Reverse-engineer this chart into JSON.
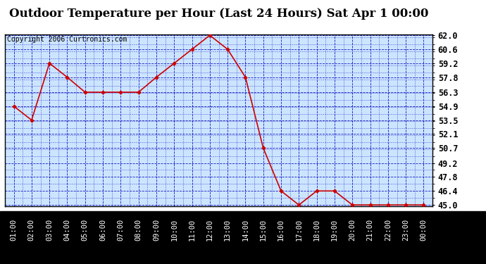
{
  "title": "Outdoor Temperature per Hour (Last 24 Hours) Sat Apr 1 00:00",
  "copyright": "Copyright 2006 Curtronics.com",
  "x_labels": [
    "01:00",
    "02:00",
    "03:00",
    "04:00",
    "05:00",
    "06:00",
    "07:00",
    "08:00",
    "09:00",
    "10:00",
    "11:00",
    "12:00",
    "13:00",
    "14:00",
    "15:00",
    "16:00",
    "17:00",
    "18:00",
    "19:00",
    "20:00",
    "21:00",
    "22:00",
    "23:00",
    "00:00"
  ],
  "y_values": [
    54.9,
    53.5,
    59.2,
    57.8,
    56.3,
    56.3,
    56.3,
    56.3,
    57.8,
    59.2,
    60.6,
    62.0,
    60.6,
    57.8,
    50.7,
    46.4,
    45.0,
    46.4,
    46.4,
    45.0,
    45.0,
    45.0,
    45.0,
    45.0
  ],
  "y_min": 45.0,
  "y_max": 62.0,
  "y_ticks": [
    45.0,
    46.4,
    47.8,
    49.2,
    50.7,
    52.1,
    53.5,
    54.9,
    56.3,
    57.8,
    59.2,
    60.6,
    62.0
  ],
  "line_color": "#cc0000",
  "marker_color": "#cc0000",
  "bg_color": "#cce5ff",
  "grid_color": "#0000bb",
  "title_fontsize": 12,
  "copyright_fontsize": 7,
  "axis_label_fontsize": 7.5,
  "ytick_fontsize": 8.5
}
